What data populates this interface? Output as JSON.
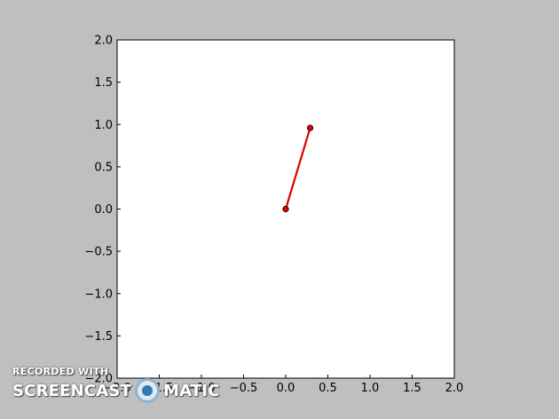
{
  "chart_data": {
    "type": "line",
    "title": "",
    "xlabel": "",
    "ylabel": "",
    "xlim": [
      -2.0,
      2.0
    ],
    "ylim": [
      -2.0,
      2.0
    ],
    "grid": true,
    "xticks": [
      "−2.0",
      "−1.5",
      "−1.0",
      "−0.5",
      "0.0",
      "0.5",
      "1.0",
      "1.5",
      "2.0"
    ],
    "yticks": [
      "−2.0",
      "−1.5",
      "−1.0",
      "−0.5",
      "0.0",
      "0.5",
      "1.0",
      "1.5",
      "2.0"
    ],
    "series": [
      {
        "x": [
          0.0,
          0.29
        ],
        "y": [
          0.0,
          0.96
        ],
        "color": "#dd0000",
        "marker": "circle"
      }
    ]
  },
  "watermark": {
    "top": "RECORDED WITH",
    "left": "SCREENCAST",
    "right": "MATIC",
    "logo": "screencast-o-matic-logo-icon"
  },
  "colors": {
    "background": "#bfbfbf",
    "plot_area": "#ffffff",
    "line": "#dd0000"
  }
}
